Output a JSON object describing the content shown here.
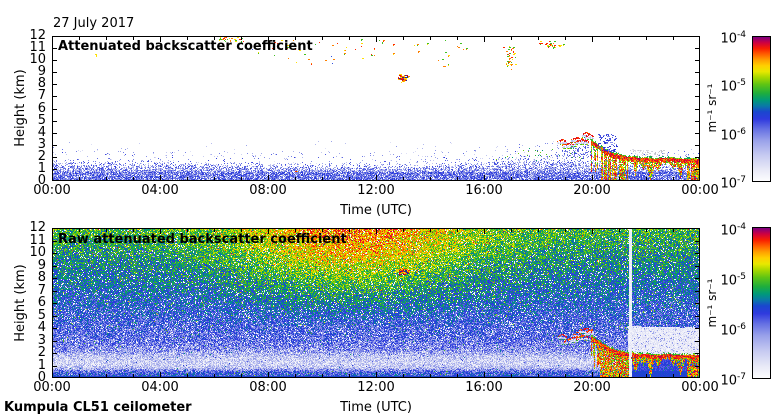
{
  "title": "27 July 2017",
  "footer": "Kumpula CL51 ceilometer",
  "axes": {
    "x_label": "Time (UTC)",
    "y_label": "Height (km)",
    "x_tick_labels": [
      "00:00",
      "04:00",
      "08:00",
      "12:00",
      "16:00",
      "20:00",
      "00:00"
    ],
    "y_tick_labels": [
      "12",
      "11",
      "10",
      "9",
      "8",
      "7",
      "6",
      "5",
      "4",
      "3",
      "2",
      "1",
      "0"
    ]
  },
  "chart_data": {
    "type": "heatmap",
    "x": {
      "label": "Time (UTC)",
      "range_hours": [
        0,
        24
      ],
      "major_tick_hours": 4,
      "minor_tick_hours": 1
    },
    "y": {
      "label": "Height (km)",
      "range_km": [
        0,
        12
      ],
      "tick_step_km": 1
    },
    "colorbar": {
      "unit": "m⁻¹ sr⁻¹",
      "scale": "log",
      "range": [
        1e-07,
        0.0001
      ],
      "tick_labels": [
        {
          "base": "10",
          "exp": "-4"
        },
        {
          "base": "10",
          "exp": "-5"
        },
        {
          "base": "10",
          "exp": "-6"
        },
        {
          "base": "10",
          "exp": "-7"
        }
      ],
      "gradient_stops": [
        {
          "f": 0.0,
          "c": "#fdfdfe"
        },
        {
          "f": 0.08,
          "c": "#e8e9f7"
        },
        {
          "f": 0.18,
          "c": "#c6caf1"
        },
        {
          "f": 0.28,
          "c": "#9aa2ea"
        },
        {
          "f": 0.36,
          "c": "#6671e3"
        },
        {
          "f": 0.43,
          "c": "#2f3ade"
        },
        {
          "f": 0.48,
          "c": "#1a46cf"
        },
        {
          "f": 0.52,
          "c": "#0a78a8"
        },
        {
          "f": 0.56,
          "c": "#00997a"
        },
        {
          "f": 0.61,
          "c": "#1fae3c"
        },
        {
          "f": 0.67,
          "c": "#5ec414"
        },
        {
          "f": 0.72,
          "c": "#a8d800"
        },
        {
          "f": 0.76,
          "c": "#e8e800"
        },
        {
          "f": 0.8,
          "c": "#ffd000"
        },
        {
          "f": 0.84,
          "c": "#ffa000"
        },
        {
          "f": 0.88,
          "c": "#ff6000"
        },
        {
          "f": 0.92,
          "c": "#f81e00"
        },
        {
          "f": 0.96,
          "c": "#cf0040"
        },
        {
          "f": 1.0,
          "c": "#7c0080"
        }
      ]
    },
    "panels": [
      {
        "title": "Attenuated backscatter coefficient",
        "kind": "processed",
        "background": "#ffffff"
      },
      {
        "title": "Raw attenuated backscatter coefficient",
        "kind": "raw"
      }
    ],
    "features": {
      "boundary_layer": {
        "description": "blue aerosol speckle layer 0-2 km across all 24 h, solid blue below 0.75 km",
        "top_km": [
          [
            0,
            1.85
          ],
          [
            2,
            1.8
          ],
          [
            4,
            1.75
          ],
          [
            6,
            1.7
          ],
          [
            8,
            1.55
          ],
          [
            9,
            1.5
          ],
          [
            10,
            1.45
          ],
          [
            12,
            1.55
          ],
          [
            14,
            1.55
          ],
          [
            15,
            1.65
          ],
          [
            16,
            1.95
          ],
          [
            17,
            2.25
          ],
          [
            17.5,
            2.4
          ],
          [
            18,
            2.2
          ],
          [
            19,
            2.35
          ],
          [
            19.5,
            2.15
          ],
          [
            20,
            2.0
          ],
          [
            21,
            1.8
          ],
          [
            22,
            1.7
          ],
          [
            23,
            1.75
          ],
          [
            24,
            1.85
          ]
        ],
        "solid_top_km": 0.75
      },
      "cloud": {
        "description": "low precipitating cloud 19:00-24:00 UTC, base descending from ~3.5 km to ~1.8 km, rain shafts to ground 20:20-21:20 and after 23:30",
        "base_path_km": [
          [
            19.95,
            3.35
          ],
          [
            20.15,
            3.05
          ],
          [
            20.4,
            2.7
          ],
          [
            20.7,
            2.35
          ],
          [
            21.0,
            2.15
          ],
          [
            21.3,
            2.0
          ],
          [
            21.8,
            1.92
          ],
          [
            22.3,
            1.85
          ],
          [
            22.8,
            1.9
          ],
          [
            23.3,
            1.83
          ],
          [
            23.7,
            1.86
          ],
          [
            24,
            1.8
          ]
        ],
        "fragments": [
          [
            18.9,
            3.35
          ],
          [
            19.1,
            2.95
          ],
          [
            19.28,
            3.15
          ],
          [
            19.45,
            3.5
          ],
          [
            19.62,
            3.3
          ],
          [
            19.78,
            3.85
          ],
          [
            19.9,
            3.7
          ]
        ],
        "precip_to_ground_hours": [
          [
            20.3,
            21.35
          ],
          [
            23.5,
            24
          ]
        ],
        "virga_spikes": [
          [
            21.6,
            1.2
          ],
          [
            21.9,
            0.6
          ],
          [
            22.15,
            1.5
          ],
          [
            22.45,
            0.7
          ],
          [
            23.0,
            0.5
          ],
          [
            23.25,
            1.3
          ]
        ],
        "raw_white_column_hour": 21.37
      },
      "high_clouds": [
        {
          "t0": 1.5,
          "t1": 1.7,
          "z0": 10.2,
          "z1": 10.45,
          "n": 2,
          "palette": [
            "#ffe000"
          ]
        },
        {
          "t0": 6.2,
          "t1": 7.1,
          "z0": 11.5,
          "z1": 12.0,
          "n": 30,
          "palette": [
            "#ff8000",
            "#ff2800",
            "#ffe000",
            "#40c020"
          ]
        },
        {
          "t0": 7.4,
          "t1": 10.6,
          "z0": 9.6,
          "z1": 11.9,
          "n": 26,
          "palette": [
            "#ff8000",
            "#ff2800",
            "#ffe000",
            "#40c020",
            "#3050e0"
          ]
        },
        {
          "t0": 10.8,
          "t1": 12.7,
          "z0": 10.1,
          "z1": 11.7,
          "n": 18,
          "palette": [
            "#ff8000",
            "#ff2800",
            "#ffe000",
            "#40c020"
          ]
        },
        {
          "t0": 12.8,
          "t1": 13.25,
          "z0": 8.15,
          "z1": 8.85,
          "n": 50,
          "dense": true,
          "in_raw": true,
          "palette": [
            "#ff2800",
            "#ff8000",
            "#cc0020",
            "#ffe000",
            "#203090"
          ]
        },
        {
          "t0": 13.3,
          "t1": 14.8,
          "z0": 9.4,
          "z1": 11.6,
          "n": 12,
          "palette": [
            "#ff8000",
            "#ffe000",
            "#40c020"
          ]
        },
        {
          "t0": 15.0,
          "t1": 15.35,
          "z0": 10.9,
          "z1": 11.5,
          "n": 5,
          "palette": [
            "#40c020",
            "#ff8000"
          ]
        },
        {
          "t0": 16.7,
          "t1": 17.25,
          "z0": 8.9,
          "z1": 11.6,
          "n": 34,
          "dense": true,
          "palette": [
            "#ff8000",
            "#ffe000",
            "#40c020",
            "#ff2800"
          ]
        },
        {
          "t0": 17.9,
          "t1": 19.05,
          "z0": 11.0,
          "z1": 11.6,
          "n": 40,
          "dense": true,
          "palette": [
            "#ff8000",
            "#ffe000",
            "#40c020",
            "#ff2800"
          ]
        },
        {
          "t0": 20.25,
          "t1": 20.9,
          "z0": 2.4,
          "z1": 3.9,
          "n": 70,
          "palette": [
            "#4a55e0",
            "#8890ea",
            "#2a35d5"
          ]
        }
      ],
      "bl_specks": [
        {
          "t": 9.0,
          "z": 0.78,
          "c": "#ff2800"
        }
      ],
      "raw_noise": {
        "description": "full-field solar/background speckle in raw signal: dark blue near ground, pale band ~1 km, blue 2-5 km, green aloft, orange-red 6-12 km near midday",
        "base_profile": [
          [
            0,
            0.42
          ],
          [
            0.3,
            0.42
          ],
          [
            0.5,
            0.38
          ],
          [
            0.8,
            0.2
          ],
          [
            1.1,
            0.15
          ],
          [
            1.6,
            0.17
          ],
          [
            2.2,
            0.3
          ],
          [
            3,
            0.36
          ],
          [
            12,
            0.63
          ]
        ],
        "sun_boost": {
          "amp": 0.24,
          "center_hour": 11.2,
          "sigma_hours": 4.4,
          "min_z_km": 4
        }
      }
    }
  }
}
